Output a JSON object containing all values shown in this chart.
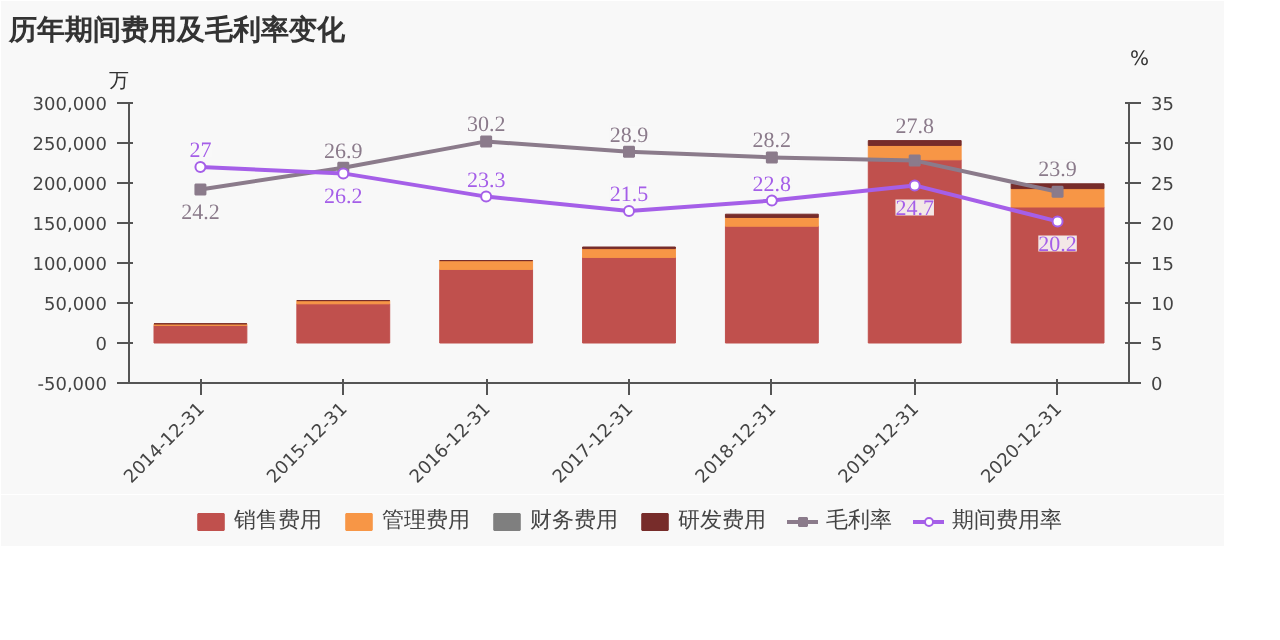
{
  "chart_data": {
    "type": "bar",
    "title": "历年期间费用及毛利率变化",
    "ylabel": "万",
    "y2label": "%",
    "stacked": true,
    "categories": [
      "2014-12-31",
      "2015-12-31",
      "2016-12-31",
      "2017-12-31",
      "2018-12-31",
      "2019-12-31",
      "2020-12-31"
    ],
    "series": [
      {
        "name": "销售费用",
        "color": "#c0504d",
        "values": [
          22000,
          49000,
          92000,
          107000,
          146000,
          229000,
          170000
        ]
      },
      {
        "name": "管理费用",
        "color": "#f79646",
        "values": [
          2000,
          4000,
          11000,
          11000,
          11000,
          18000,
          23000
        ]
      },
      {
        "name": "财务费用",
        "color": "#7f7f7f",
        "values": [
          null,
          null,
          null,
          null,
          null,
          null,
          null
        ]
      },
      {
        "name": "研发费用",
        "color": "#772c2a",
        "values": [
          0,
          0,
          0,
          2000,
          4000,
          6000,
          6000
        ]
      },
      {
        "name": "毛利率",
        "type": "line",
        "axis": "y2",
        "color": "#8b7b8b",
        "marker": "square",
        "data_labels": true,
        "values": [
          24.2,
          26.9,
          30.2,
          28.9,
          28.2,
          27.8,
          23.9
        ]
      },
      {
        "name": "期间费用率",
        "type": "line",
        "axis": "y2",
        "color": "#a55fe8",
        "marker": "circle",
        "data_labels": true,
        "values": [
          27,
          26.2,
          23.3,
          21.5,
          22.8,
          24.7,
          20.2
        ]
      }
    ],
    "ylim": [
      -50000,
      300000
    ],
    "yticks": [
      {
        "value": -50000,
        "label": "-50,000"
      },
      0,
      {
        "value": 50000,
        "label": "50,000"
      },
      {
        "value": 100000,
        "label": "100,000"
      },
      {
        "value": 150000,
        "label": "150,000"
      },
      {
        "value": 200000,
        "label": "200,000"
      },
      {
        "value": 250000,
        "label": "250,000"
      },
      {
        "value": 300000,
        "label": "300,000"
      }
    ],
    "y2lim": [
      0,
      35
    ],
    "y2ticks": [
      0,
      5,
      10,
      15,
      20,
      25,
      30,
      35
    ],
    "grid": false,
    "legend": "bottom"
  }
}
